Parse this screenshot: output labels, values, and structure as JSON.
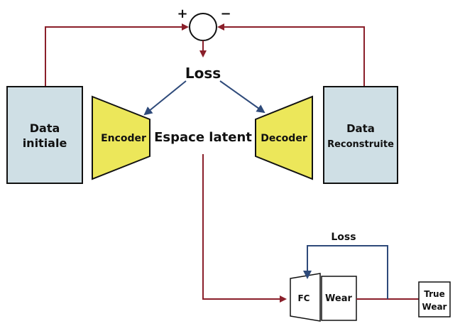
{
  "colors": {
    "red_arrow": "#8a1f2a",
    "blue_arrow": "#2e4a7a",
    "data_box": "#cfdfe5",
    "encoder_fill": "#ece75a",
    "outline": "#111111"
  },
  "top": {
    "sum_plus": "+",
    "sum_minus": "−",
    "loss_label": "Loss",
    "data_initial_line1": "Data",
    "data_initial_line2": "initiale",
    "encoder_label": "Encoder",
    "latent_label": "Espace latent",
    "decoder_label": "Decoder",
    "data_recon_line1": "Data",
    "data_recon_line2": "Reconstruite"
  },
  "bottom": {
    "loss_label": "Loss",
    "fc_label": "FC",
    "wear_label": "Wear",
    "true_wear_line1": "True",
    "true_wear_line2": "Wear"
  }
}
